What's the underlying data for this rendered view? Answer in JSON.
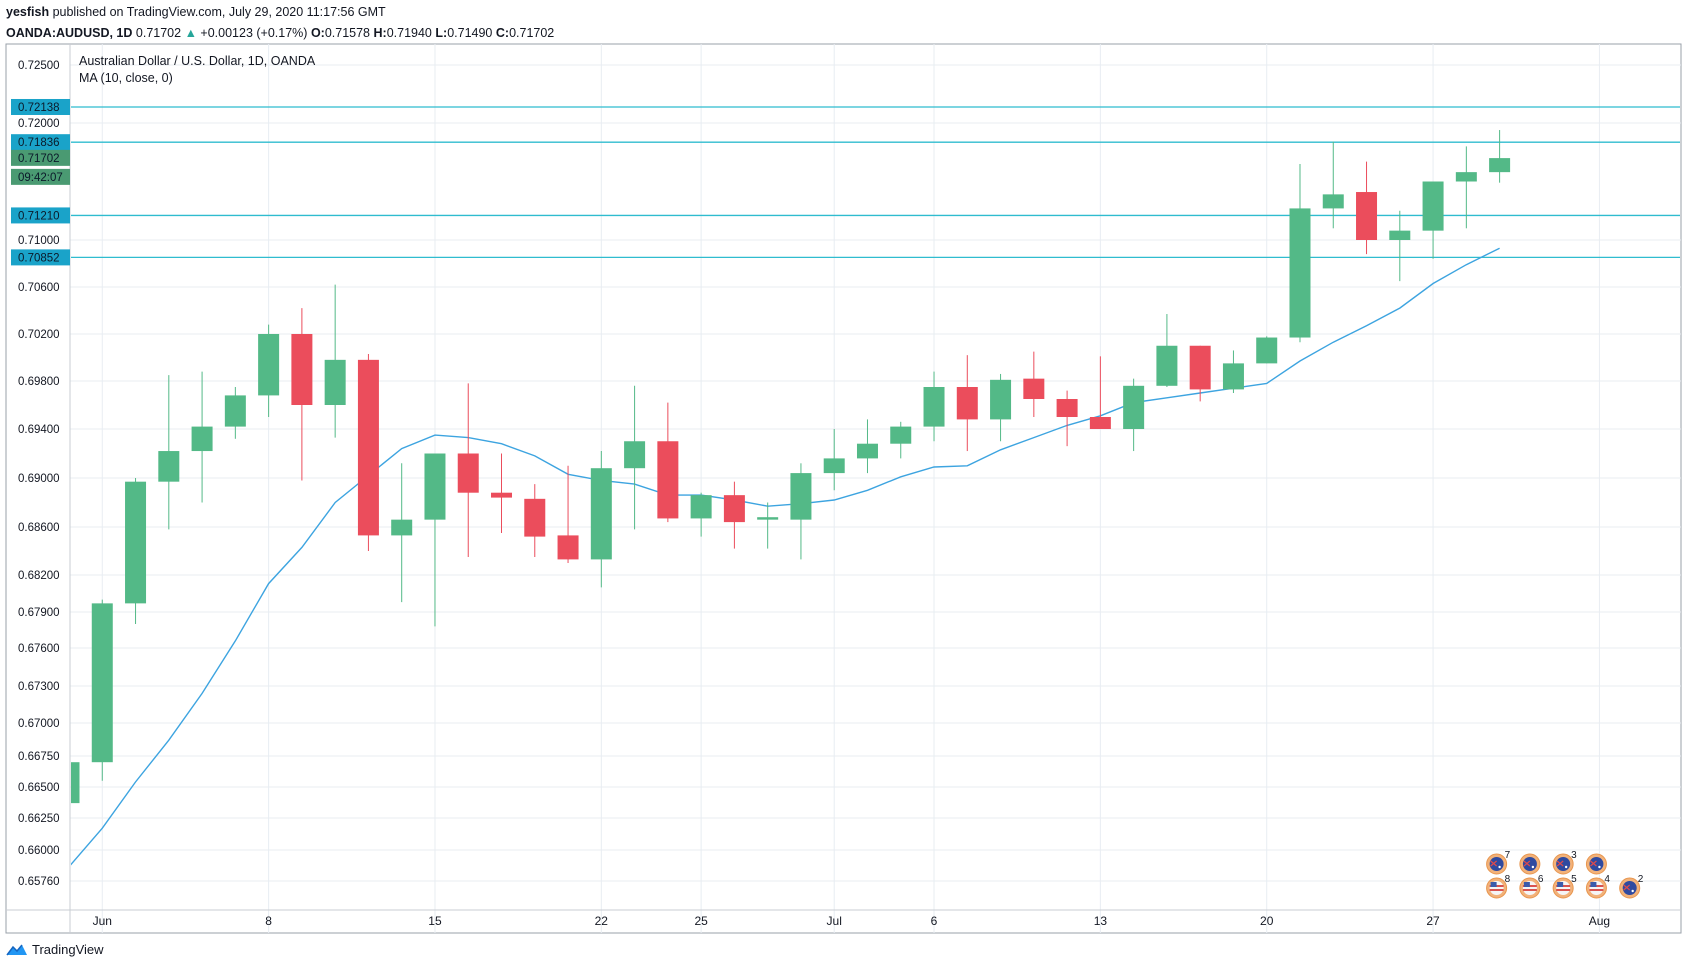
{
  "header": {
    "publisher": "yesfish",
    "published_text": "published on TradingView.com, July 29, 2020 11:17:56 GMT",
    "symbol": "OANDA:AUDUSD, 1D",
    "last": "0.71702",
    "change_arrow": "▲",
    "change": "+0.00123 (+0.17%)",
    "o_label": "O:",
    "o_value": "0.71578",
    "h_label": "H:",
    "h_value": "0.71940",
    "l_label": "L:",
    "l_value": "0.71490",
    "c_label": "C:",
    "c_value": "0.71702"
  },
  "legend": {
    "title": "Australian Dollar / U.S. Dollar, 1D, OANDA",
    "indicator": "MA (10, close, 0)"
  },
  "footer": {
    "brand": "TradingView",
    "logo_icon": "tradingview-logo-icon"
  },
  "colors": {
    "up": "#53b987",
    "down": "#eb4d5c",
    "ma": "#3da4e0",
    "hline": "#2fbccf",
    "hline_badge": "#1aa3c9",
    "price_badge": "#4a9a72",
    "grid": "#e8edf2"
  },
  "chart_data": {
    "type": "candlestick",
    "title": "Australian Dollar / U.S. Dollar, 1D, OANDA",
    "ylim": [
      0.656,
      0.7275
    ],
    "y_ticks": [
      "0.72500",
      "0.72000",
      "0.71000",
      "0.70600",
      "0.70200",
      "0.69800",
      "0.69400",
      "0.69000",
      "0.68600",
      "0.68200",
      "0.67900",
      "0.67600",
      "0.67300",
      "0.67000",
      "0.66750",
      "0.66500",
      "0.66250",
      "0.66000",
      "0.65760"
    ],
    "x_ticks": [
      {
        "label": "Jun",
        "i": 1
      },
      {
        "label": "8",
        "i": 6
      },
      {
        "label": "15",
        "i": 11
      },
      {
        "label": "22",
        "i": 16
      },
      {
        "label": "25",
        "i": 19
      },
      {
        "label": "Jul",
        "i": 23
      },
      {
        "label": "6",
        "i": 26
      },
      {
        "label": "13",
        "i": 31
      },
      {
        "label": "20",
        "i": 36
      },
      {
        "label": "27",
        "i": 41
      },
      {
        "label": "Aug",
        "i": 46
      }
    ],
    "candles": [
      {
        "o": 0.6637,
        "h": 0.667,
        "l": 0.6637,
        "c": 0.667
      },
      {
        "o": 0.667,
        "h": 0.68,
        "l": 0.6655,
        "c": 0.6797
      },
      {
        "o": 0.6797,
        "h": 0.69,
        "l": 0.678,
        "c": 0.6897
      },
      {
        "o": 0.6897,
        "h": 0.6985,
        "l": 0.6858,
        "c": 0.6922
      },
      {
        "o": 0.6922,
        "h": 0.6988,
        "l": 0.688,
        "c": 0.6942
      },
      {
        "o": 0.6942,
        "h": 0.6975,
        "l": 0.6932,
        "c": 0.6968
      },
      {
        "o": 0.6968,
        "h": 0.7028,
        "l": 0.695,
        "c": 0.702
      },
      {
        "o": 0.702,
        "h": 0.7042,
        "l": 0.6898,
        "c": 0.696
      },
      {
        "o": 0.696,
        "h": 0.7062,
        "l": 0.6933,
        "c": 0.6998
      },
      {
        "o": 0.6998,
        "h": 0.7003,
        "l": 0.684,
        "c": 0.6853
      },
      {
        "o": 0.6853,
        "h": 0.6912,
        "l": 0.6798,
        "c": 0.6866
      },
      {
        "o": 0.6866,
        "h": 0.692,
        "l": 0.6778,
        "c": 0.692
      },
      {
        "o": 0.692,
        "h": 0.6978,
        "l": 0.6835,
        "c": 0.6888
      },
      {
        "o": 0.6888,
        "h": 0.692,
        "l": 0.6855,
        "c": 0.6884
      },
      {
        "o": 0.6883,
        "h": 0.6895,
        "l": 0.6835,
        "c": 0.6852
      },
      {
        "o": 0.6853,
        "h": 0.691,
        "l": 0.683,
        "c": 0.6833
      },
      {
        "o": 0.6833,
        "h": 0.6922,
        "l": 0.681,
        "c": 0.6908
      },
      {
        "o": 0.6908,
        "h": 0.6976,
        "l": 0.6858,
        "c": 0.693
      },
      {
        "o": 0.693,
        "h": 0.6962,
        "l": 0.6864,
        "c": 0.6867
      },
      {
        "o": 0.6867,
        "h": 0.6888,
        "l": 0.6852,
        "c": 0.6886
      },
      {
        "o": 0.6886,
        "h": 0.6897,
        "l": 0.6842,
        "c": 0.6864
      },
      {
        "o": 0.6866,
        "h": 0.688,
        "l": 0.6842,
        "c": 0.6868
      },
      {
        "o": 0.6866,
        "h": 0.6912,
        "l": 0.6833,
        "c": 0.6904
      },
      {
        "o": 0.6904,
        "h": 0.694,
        "l": 0.689,
        "c": 0.6916
      },
      {
        "o": 0.6916,
        "h": 0.6948,
        "l": 0.6904,
        "c": 0.6928
      },
      {
        "o": 0.6928,
        "h": 0.6946,
        "l": 0.6916,
        "c": 0.6942
      },
      {
        "o": 0.6942,
        "h": 0.6988,
        "l": 0.693,
        "c": 0.6975
      },
      {
        "o": 0.6975,
        "h": 0.7002,
        "l": 0.6922,
        "c": 0.6948
      },
      {
        "o": 0.6948,
        "h": 0.6986,
        "l": 0.693,
        "c": 0.6981
      },
      {
        "o": 0.6982,
        "h": 0.7005,
        "l": 0.695,
        "c": 0.6965
      },
      {
        "o": 0.6965,
        "h": 0.6972,
        "l": 0.6926,
        "c": 0.695
      },
      {
        "o": 0.695,
        "h": 0.7001,
        "l": 0.694,
        "c": 0.694
      },
      {
        "o": 0.694,
        "h": 0.6982,
        "l": 0.6922,
        "c": 0.6976
      },
      {
        "o": 0.6976,
        "h": 0.7037,
        "l": 0.6975,
        "c": 0.701
      },
      {
        "o": 0.701,
        "h": 0.701,
        "l": 0.6963,
        "c": 0.6973
      },
      {
        "o": 0.6973,
        "h": 0.7006,
        "l": 0.697,
        "c": 0.6995
      },
      {
        "o": 0.6995,
        "h": 0.7018,
        "l": 0.6995,
        "c": 0.7017
      },
      {
        "o": 0.7017,
        "h": 0.7165,
        "l": 0.7013,
        "c": 0.7127
      },
      {
        "o": 0.7127,
        "h": 0.7184,
        "l": 0.711,
        "c": 0.7139
      },
      {
        "o": 0.7141,
        "h": 0.7167,
        "l": 0.7088,
        "c": 0.71
      },
      {
        "o": 0.71,
        "h": 0.7125,
        "l": 0.7065,
        "c": 0.7108
      },
      {
        "o": 0.7108,
        "h": 0.715,
        "l": 0.7084,
        "c": 0.715
      },
      {
        "o": 0.715,
        "h": 0.718,
        "l": 0.711,
        "c": 0.7158
      },
      {
        "o": 0.7158,
        "h": 0.7194,
        "l": 0.7149,
        "c": 0.717
      }
    ],
    "ma_series": {
      "name": "MA (10, close, 0)",
      "values": [
        0.6587,
        0.6617,
        0.6654,
        0.6687,
        0.6724,
        0.6766,
        0.6813,
        0.6843,
        0.688,
        0.6902,
        0.6924,
        0.6935,
        0.6933,
        0.6928,
        0.6918,
        0.6903,
        0.6898,
        0.6895,
        0.6886,
        0.6886,
        0.6882,
        0.6877,
        0.6879,
        0.6882,
        0.689,
        0.6901,
        0.6909,
        0.691,
        0.6923,
        0.6933,
        0.6943,
        0.6951,
        0.6962,
        0.6966,
        0.697,
        0.6974,
        0.6978,
        0.6997,
        0.7013,
        0.7027,
        0.7042,
        0.7063,
        0.7079,
        0.7093
      ]
    },
    "hlines": [
      {
        "value": 0.72138,
        "label": "0.72138"
      },
      {
        "value": 0.71836,
        "label": "0.71836"
      },
      {
        "value": 0.7121,
        "label": "0.71210"
      },
      {
        "value": 0.70852,
        "label": "0.70852"
      }
    ],
    "price_label": "0.71702",
    "countdown": "09:42:07",
    "events": [
      {
        "i": 43,
        "row": 0,
        "flag": "au",
        "count": "7"
      },
      {
        "i": 44,
        "row": 0,
        "flag": "au",
        "count": ""
      },
      {
        "i": 45,
        "row": 0,
        "flag": "au",
        "count": "3"
      },
      {
        "i": 46,
        "row": 0,
        "flag": "au",
        "count": ""
      },
      {
        "i": 43,
        "row": 1,
        "flag": "us",
        "count": "8"
      },
      {
        "i": 44,
        "row": 1,
        "flag": "us",
        "count": "6"
      },
      {
        "i": 45,
        "row": 1,
        "flag": "us",
        "count": "5"
      },
      {
        "i": 46,
        "row": 1,
        "flag": "us",
        "count": "4"
      },
      {
        "i": 47,
        "row": 1,
        "flag": "au",
        "count": "2"
      }
    ]
  }
}
